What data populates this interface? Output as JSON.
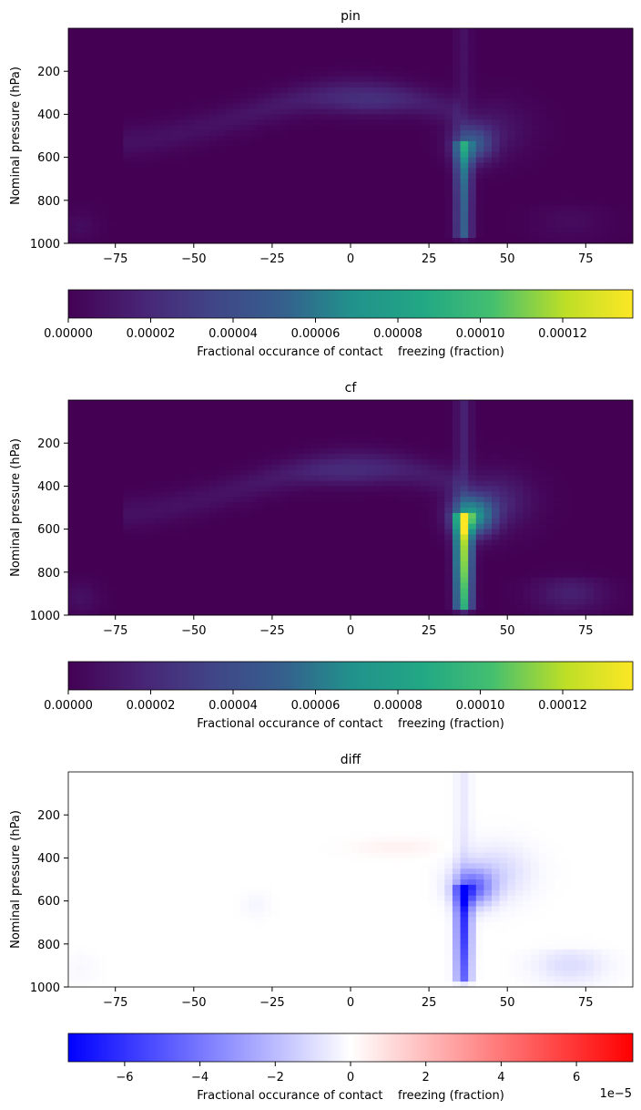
{
  "chart_data": [
    {
      "type": "heatmap",
      "title": "pin",
      "ylabel": "Nominal pressure (hPa)",
      "xlim": [
        -90,
        90
      ],
      "ylim": [
        1000,
        0
      ],
      "xticks": [
        "−75",
        "−50",
        "−25",
        "0",
        "25",
        "50",
        "75"
      ],
      "yticks": [
        "200",
        "400",
        "600",
        "800",
        "1000"
      ],
      "colormap": "viridis",
      "colorbar": {
        "label": "Fractional occurance of contact    freezing (fraction)",
        "range": [
          0,
          0.000137
        ],
        "ticks": [
          "0.00000",
          "0.00002",
          "0.00004",
          "0.00006",
          "0.00008",
          "0.00010",
          "0.00012"
        ]
      },
      "features": [
        {
          "kind": "arc",
          "lat": [
            -65,
            35
          ],
          "pressure": [
            600,
            300
          ],
          "value": 1.2e-05
        },
        {
          "kind": "max",
          "lat": 5,
          "pressure": 350,
          "value": 2.2e-05
        },
        {
          "kind": "column",
          "lat": [
            34,
            38
          ],
          "pressure": [
            550,
            1000
          ],
          "value": 6.2e-05
        },
        {
          "kind": "max",
          "lat": 37,
          "pressure": 570,
          "value": 6.5e-05
        }
      ]
    },
    {
      "type": "heatmap",
      "title": "cf",
      "ylabel": "Nominal pressure (hPa)",
      "xlim": [
        -90,
        90
      ],
      "ylim": [
        1000,
        0
      ],
      "xticks": [
        "−75",
        "−50",
        "−25",
        "0",
        "25",
        "50",
        "75"
      ],
      "yticks": [
        "200",
        "400",
        "600",
        "800",
        "1000"
      ],
      "colormap": "viridis",
      "colorbar": {
        "label": "Fractional occurance of contact    freezing (fraction)",
        "range": [
          0,
          0.000137
        ],
        "ticks": [
          "0.00000",
          "0.00002",
          "0.00004",
          "0.00006",
          "0.00008",
          "0.00010",
          "0.00012"
        ]
      },
      "features": [
        {
          "kind": "arc",
          "lat": [
            -65,
            35
          ],
          "pressure": [
            600,
            300
          ],
          "value": 1.2e-05
        },
        {
          "kind": "max",
          "lat": 0,
          "pressure": 350,
          "value": 2e-05
        },
        {
          "kind": "column",
          "lat": [
            34,
            38
          ],
          "pressure": [
            550,
            1000
          ],
          "value": 0.000125
        },
        {
          "kind": "max",
          "lat": 37,
          "pressure": 600,
          "value": 0.000137
        }
      ]
    },
    {
      "type": "heatmap",
      "title": "diff",
      "ylabel": "Nominal pressure (hPa)",
      "xlim": [
        -90,
        90
      ],
      "ylim": [
        1000,
        0
      ],
      "xticks": [
        "−75",
        "−50",
        "−25",
        "0",
        "25",
        "50",
        "75"
      ],
      "yticks": [
        "200",
        "400",
        "600",
        "800",
        "1000"
      ],
      "colormap": "bwr",
      "colorbar": {
        "label": "Fractional occurance of contact    freezing (fraction)",
        "range": [
          -7.5e-05,
          7.5e-05
        ],
        "ticks": [
          "−6",
          "−4",
          "−2",
          "0",
          "2",
          "4",
          "6"
        ],
        "offset_text": "1e−5"
      },
      "features": [
        {
          "kind": "column",
          "lat": [
            34,
            38
          ],
          "pressure": [
            500,
            950
          ],
          "value": -6e-05
        },
        {
          "kind": "max",
          "lat": 39,
          "pressure": 600,
          "value": -7.5e-05
        },
        {
          "kind": "blob",
          "lat": [
            38,
            55
          ],
          "pressure": [
            450,
            700
          ],
          "value": -3e-05
        },
        {
          "kind": "blob",
          "lat": [
            62,
            78
          ],
          "pressure": [
            850,
            950
          ],
          "value": -1.2e-05
        }
      ]
    }
  ]
}
